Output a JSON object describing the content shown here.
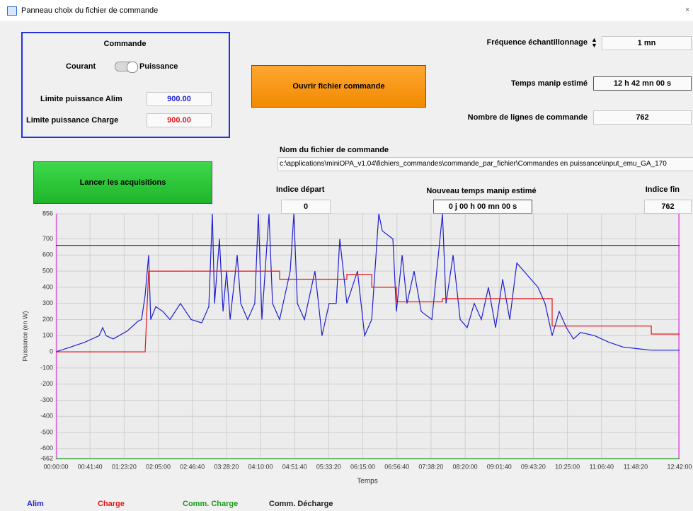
{
  "window": {
    "title": "Panneau choix du fichier de commande"
  },
  "commande": {
    "title": "Commande",
    "left_option": "Courant",
    "right_option": "Puissance",
    "limit_alim_label": "Limite puissance Alim",
    "limit_alim_value": "900.00",
    "limit_charge_label": "Limite puissance Charge",
    "limit_charge_value": "900.00"
  },
  "buttons": {
    "open": "Ouvrir fichier commande",
    "start": "Lancer les acquisitions"
  },
  "fields": {
    "frequency_label": "Fréquence échantillonnage",
    "frequency_value": "1 mn",
    "duration_label": "Temps manip estimé",
    "duration_value": "12 h 42 mn 00 s",
    "lines_label": "Nombre de lignes de commande",
    "lines_value": "762",
    "file_label": "Nom du fichier de commande",
    "file_value": "c:\\applications\\miniOPA_v1.04\\fichiers_commandes\\commande_par_fichier\\Commandes en puissance\\input_emu_GA_170",
    "start_index_label": "Indice départ",
    "start_index_value": "0",
    "new_duration_label": "Nouveau temps manip estimé",
    "new_duration_value": "0 j 00 h 00 mn 00 s",
    "end_index_label": "Indice fin",
    "end_index_value": "762"
  },
  "chart_data": {
    "type": "line",
    "xlabel": "Temps",
    "ylabel": "Puissance (en W)",
    "xlim": [
      0,
      45720
    ],
    "ylim": [
      -662,
      856
    ],
    "xticks": [
      {
        "value": 0,
        "label": "00:00:00"
      },
      {
        "value": 2500,
        "label": "00:41:40"
      },
      {
        "value": 5000,
        "label": "01:23:20"
      },
      {
        "value": 7500,
        "label": "02:05:00"
      },
      {
        "value": 10000,
        "label": "02:46:40"
      },
      {
        "value": 12500,
        "label": "03:28:20"
      },
      {
        "value": 15000,
        "label": "04:10:00"
      },
      {
        "value": 17500,
        "label": "04:51:40"
      },
      {
        "value": 20000,
        "label": "05:33:20"
      },
      {
        "value": 22500,
        "label": "06:15:00"
      },
      {
        "value": 25000,
        "label": "06:56:40"
      },
      {
        "value": 27500,
        "label": "07:38:20"
      },
      {
        "value": 30000,
        "label": "08:20:00"
      },
      {
        "value": 32500,
        "label": "09:01:40"
      },
      {
        "value": 35000,
        "label": "09:43:20"
      },
      {
        "value": 37500,
        "label": "10:25:00"
      },
      {
        "value": 40000,
        "label": "11:06:40"
      },
      {
        "value": 42500,
        "label": "11:48:20"
      },
      {
        "value": 45720,
        "label": "12:42:00"
      }
    ],
    "yticks": [
      856,
      700,
      600,
      500,
      400,
      300,
      200,
      100,
      0,
      -100,
      -200,
      -300,
      -400,
      -500,
      -600,
      -662
    ],
    "grid": true,
    "legend": "bottom",
    "series": [
      {
        "name": "Alim",
        "color": "#1f1fd0",
        "x": [
          0,
          1090,
          2130,
          3170,
          3430,
          3680,
          4200,
          5240,
          6020,
          6280,
          6540,
          6800,
          6950,
          7320,
          7840,
          8360,
          9130,
          9910,
          10690,
          11210,
          11470,
          11630,
          11990,
          12250,
          12510,
          12770,
          13290,
          13550,
          14060,
          14580,
          14840,
          15100,
          15620,
          15880,
          16400,
          17180,
          17440,
          17700,
          18220,
          18990,
          19510,
          20030,
          20550,
          20810,
          21330,
          22110,
          22630,
          23150,
          23670,
          23930,
          24700,
          24960,
          25380,
          25740,
          26260,
          26780,
          27560,
          28340,
          28600,
          29120,
          29640,
          30150,
          30670,
          31190,
          31710,
          32230,
          32750,
          33270,
          33790,
          34310,
          35340,
          35860,
          36380,
          36900,
          37420,
          37940,
          38460,
          39500,
          40530,
          41570,
          42610,
          43650,
          45720
        ],
        "values": [
          0,
          30,
          60,
          100,
          150,
          100,
          80,
          130,
          190,
          200,
          350,
          600,
          200,
          280,
          250,
          200,
          300,
          200,
          180,
          280,
          856,
          300,
          700,
          250,
          500,
          200,
          600,
          300,
          200,
          300,
          856,
          200,
          856,
          300,
          200,
          500,
          856,
          300,
          200,
          500,
          100,
          300,
          300,
          700,
          300,
          500,
          100,
          200,
          856,
          750,
          700,
          250,
          600,
          300,
          500,
          250,
          200,
          856,
          300,
          600,
          200,
          150,
          300,
          200,
          400,
          150,
          450,
          200,
          550,
          500,
          400,
          300,
          100,
          250,
          150,
          80,
          120,
          100,
          60,
          30,
          20,
          10,
          10
        ]
      },
      {
        "name": "Charge",
        "color": "#e8141a",
        "x": [
          0,
          6540,
          6800,
          16400,
          16400,
          21330,
          21330,
          23150,
          23150,
          24960,
          24960,
          28340,
          28340,
          36380,
          36380,
          43650,
          43650,
          45720
        ],
        "values": [
          0,
          0,
          500,
          500,
          450,
          450,
          480,
          480,
          400,
          400,
          310,
          310,
          330,
          330,
          160,
          160,
          110,
          110
        ]
      },
      {
        "name": "Comm. Charge",
        "color": "#1a9a1a",
        "x": [
          0,
          45720
        ],
        "values": [
          -662,
          -662
        ]
      },
      {
        "name": "Comm. Décharge",
        "color": "#222222",
        "x": [
          0,
          45720
        ],
        "values": [
          660,
          660
        ]
      }
    ]
  }
}
